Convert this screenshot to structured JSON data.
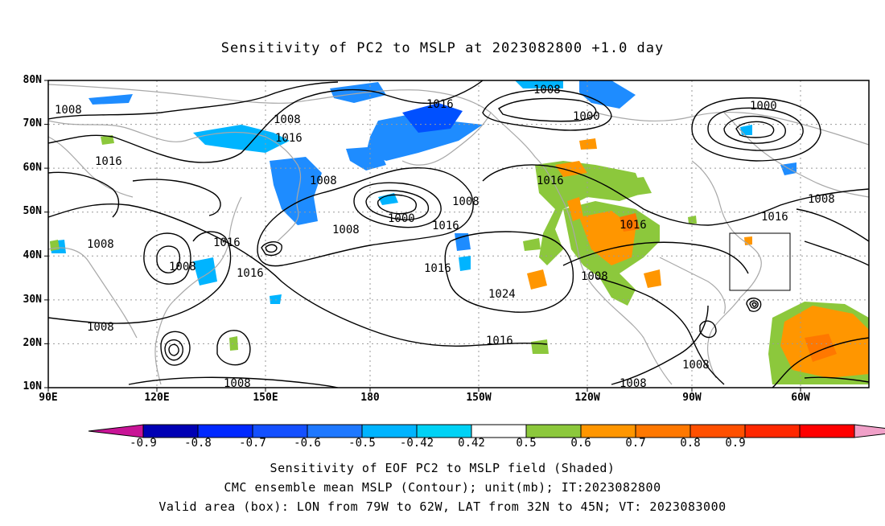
{
  "title": "Sensitivity of PC2 to MSLP at 2023082800 +1.0 day",
  "map": {
    "lat_labels": [
      "80N",
      "70N",
      "60N",
      "50N",
      "40N",
      "30N",
      "20N",
      "10N"
    ],
    "lon_labels": [
      "90E",
      "120E",
      "150E",
      "180",
      "150W",
      "120W",
      "90W",
      "60W"
    ],
    "contour_labels": [
      "1008",
      "1016",
      "1008",
      "1008",
      "1016",
      "1000",
      "1016",
      "1008",
      "1016",
      "1008",
      "1000",
      "1016",
      "1008",
      "1016",
      "1008",
      "1000",
      "1016",
      "1016",
      "1008",
      "1024",
      "1008",
      "1016",
      "1016",
      "1008",
      "1008",
      "1008",
      "1008"
    ],
    "colors": {
      "contour": "#000000",
      "coastline": "#a8a8a8",
      "grid": "#9a9a9a",
      "neg_shade": "#1e8cff",
      "neg_light": "#00c8f0",
      "pos_green": "#8cc83c",
      "pos_orange": "#ff9600",
      "pos_dark": "#ff6400"
    }
  },
  "colorbar": {
    "labels": [
      "-0.9",
      "-0.8",
      "-0.7",
      "-0.6",
      "-0.5",
      "-0.42",
      "0.42",
      "0.5",
      "0.6",
      "0.7",
      "0.8",
      "0.9"
    ],
    "colors": [
      "#c81496",
      "#0000b4",
      "#0028ff",
      "#1450ff",
      "#1e78ff",
      "#00b4ff",
      "#00d2f5",
      "#ffffff",
      "#8cc83c",
      "#ff9600",
      "#ff7800",
      "#ff5000",
      "#ff2800",
      "#ff0000",
      "#f0a0c8"
    ]
  },
  "captions": [
    "Sensitivity of EOF PC2 to MSLP field (Shaded)",
    "CMC ensemble mean MSLP (Contour); unit(mb); IT:2023082800",
    "Valid area (box): LON from 79W to 62W, LAT from 32N to 45N; VT: 2023083000"
  ]
}
